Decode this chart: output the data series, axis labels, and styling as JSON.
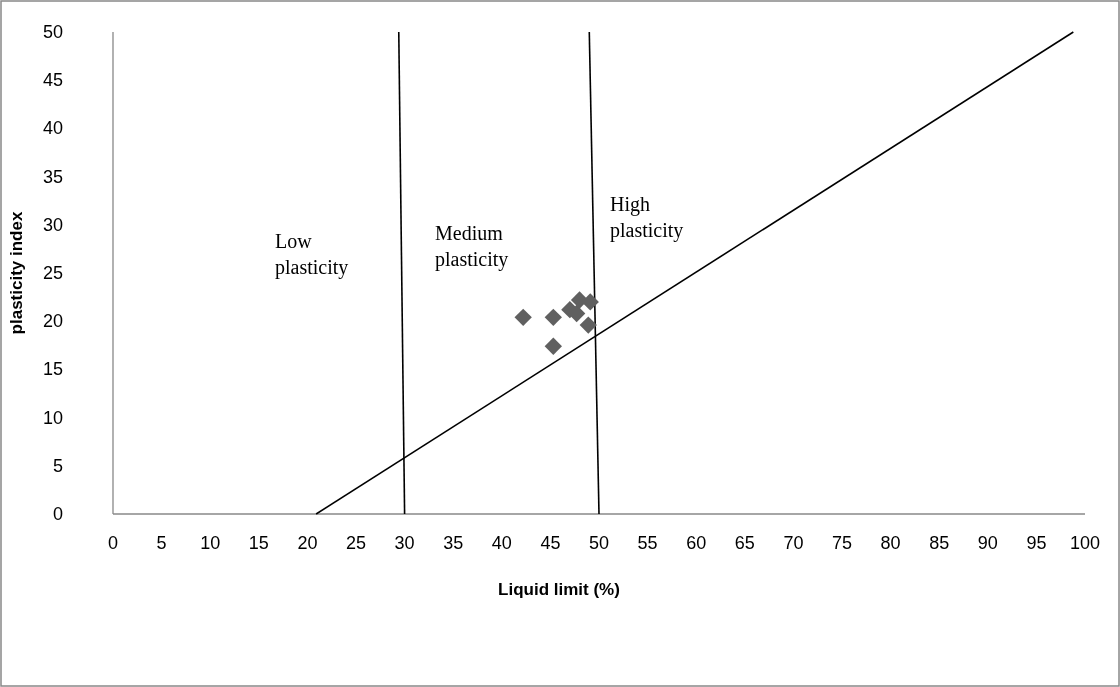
{
  "chart_data": {
    "type": "scatter",
    "xlabel": "Liquid limit (%)",
    "ylabel": "plasticity index",
    "xlim": [
      0,
      100
    ],
    "ylim": [
      0,
      50
    ],
    "xticks": [
      0,
      5,
      10,
      15,
      20,
      25,
      30,
      35,
      40,
      45,
      50,
      55,
      60,
      65,
      70,
      75,
      80,
      85,
      90,
      95,
      100
    ],
    "yticks": [
      0,
      5,
      10,
      15,
      20,
      25,
      30,
      35,
      40,
      45,
      50
    ],
    "grid": false,
    "marker": "diamond",
    "series": [
      {
        "type": "line",
        "color": "#000000",
        "marker": "none",
        "x": [
          30,
          29.4
        ],
        "values": [
          0,
          50
        ]
      },
      {
        "type": "line",
        "color": "#000000",
        "marker": "none",
        "x": [
          50,
          49
        ],
        "values": [
          0,
          50
        ]
      },
      {
        "type": "line",
        "color": "#000000",
        "marker": "none",
        "x": [
          20.9,
          98.8
        ],
        "values": [
          0,
          50
        ]
      },
      {
        "color": "#606060",
        "x": [
          42.2,
          45.3,
          45.3,
          47,
          47.7,
          48,
          49.1,
          48.9
        ],
        "values": [
          20.4,
          20.4,
          17.4,
          21.2,
          20.8,
          22.2,
          22,
          19.6
        ]
      }
    ],
    "annotations": [
      "Low plasticity",
      "Medium plasticity",
      "High plasticity"
    ]
  }
}
